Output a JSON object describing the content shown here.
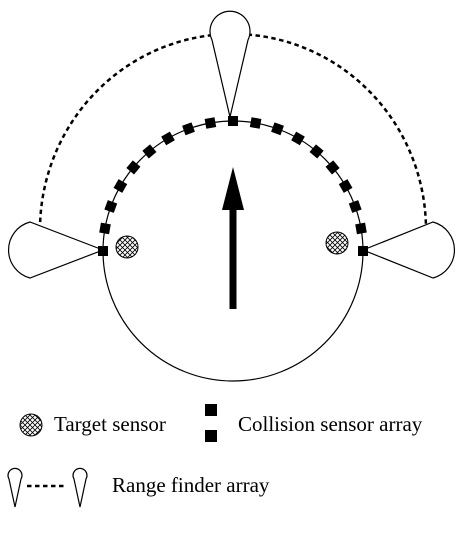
{
  "diagram": {
    "legend": {
      "target_sensor_label": "Target sensor",
      "collision_sensor_label": "Collision sensor array",
      "range_finder_label": "Range finder array"
    },
    "colors": {
      "ink": "#000000",
      "background": "#ffffff"
    },
    "icons": {
      "target_sensor": "crosshatched-circle",
      "collision_sensor": "black-square",
      "range_finder": "teardrop-cone",
      "heading": "up-arrow"
    }
  }
}
